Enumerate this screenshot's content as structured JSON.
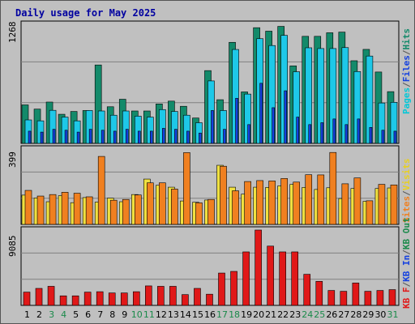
{
  "title": "Daily usage for May 2025",
  "colors": {
    "hits": "#138a6a",
    "files": "#1ec8e8",
    "pages": "#1440e0",
    "visits": "#f0e040",
    "sites": "#f08020",
    "kb": "#e01818",
    "weekday_label": "#000000",
    "weekend_label": "#1a8a4a"
  },
  "legend_top": [
    {
      "text": "Pages",
      "color": "#00c8d8"
    },
    {
      "text": "/",
      "color": "#555555"
    },
    {
      "text": "Files",
      "color": "#1440e0"
    },
    {
      "text": "/",
      "color": "#555555"
    },
    {
      "text": "Hits",
      "color": "#138a6a"
    }
  ],
  "legend_mid": [
    {
      "text": "Sites",
      "color": "#f08020"
    },
    {
      "text": "/",
      "color": "#555555"
    },
    {
      "text": "Visits",
      "color": "#e8d020"
    }
  ],
  "legend_bot": [
    {
      "text": "KB F",
      "color": "#e01818"
    },
    {
      "text": "/",
      "color": "#555555"
    },
    {
      "text": "KB In",
      "color": "#1440e0"
    },
    {
      "text": "/",
      "color": "#555555"
    },
    {
      "text": "KB Out",
      "color": "#1a8a4a"
    }
  ],
  "chart_data": [
    {
      "type": "bar",
      "panel": "hits-files-pages",
      "ymax_label": "1268",
      "ylim": [
        0,
        1268
      ],
      "categories": [
        "1",
        "2",
        "3",
        "4",
        "5",
        "6",
        "7",
        "8",
        "9",
        "10",
        "11",
        "12",
        "13",
        "14",
        "15",
        "16",
        "17",
        "18",
        "19",
        "20",
        "21",
        "22",
        "23",
        "24",
        "25",
        "26",
        "27",
        "28",
        "29",
        "30",
        "31"
      ],
      "series": [
        {
          "name": "Hits",
          "values": [
            410,
            365,
            440,
            310,
            340,
            350,
            835,
            390,
            470,
            345,
            345,
            420,
            450,
            395,
            270,
            775,
            465,
            1076,
            548,
            1232,
            1195,
            1246,
            825,
            1140,
            1140,
            1178,
            1185,
            880,
            1001,
            760,
            551
          ]
        },
        {
          "name": "Files",
          "values": [
            250,
            240,
            352,
            280,
            240,
            350,
            345,
            300,
            345,
            290,
            280,
            360,
            340,
            300,
            220,
            665,
            350,
            1000,
            525,
            1115,
            1042,
            1150,
            763,
            1018,
            1010,
            1010,
            1020,
            765,
            930,
            430,
            437
          ]
        },
        {
          "name": "Pages",
          "values": [
            130,
            120,
            150,
            140,
            120,
            150,
            140,
            130,
            150,
            130,
            130,
            160,
            150,
            130,
            110,
            350,
            150,
            480,
            200,
            640,
            380,
            560,
            280,
            200,
            220,
            260,
            200,
            260,
            170,
            140,
            130
          ]
        }
      ]
    },
    {
      "type": "bar",
      "panel": "visits-sites",
      "ymax_label": "399",
      "ylim": [
        0,
        399
      ],
      "categories": [
        "1",
        "2",
        "3",
        "4",
        "5",
        "6",
        "7",
        "8",
        "9",
        "10",
        "11",
        "12",
        "13",
        "14",
        "15",
        "16",
        "17",
        "18",
        "19",
        "20",
        "21",
        "22",
        "23",
        "24",
        "25",
        "26",
        "27",
        "28",
        "29",
        "30",
        "31"
      ],
      "series": [
        {
          "name": "Visits",
          "values": [
            155,
            140,
            120,
            152,
            115,
            142,
            118,
            139,
            120,
            158,
            240,
            207,
            197,
            124,
            117,
            129,
            313,
            197,
            160,
            197,
            196,
            204,
            212,
            196,
            185,
            194,
            137,
            190,
            122,
            190,
            193
          ]
        },
        {
          "name": "Sites",
          "values": [
            180,
            150,
            158,
            170,
            165,
            146,
            360,
            128,
            132,
            156,
            220,
            220,
            187,
            380,
            114,
            132,
            308,
            178,
            227,
            232,
            230,
            243,
            224,
            263,
            262,
            381,
            215,
            246,
            125,
            212,
            209
          ]
        }
      ]
    },
    {
      "type": "bar",
      "panel": "kbytes",
      "ymax_label": "9085",
      "ylim": [
        0,
        9085
      ],
      "categories": [
        "1",
        "2",
        "3",
        "4",
        "5",
        "6",
        "7",
        "8",
        "9",
        "10",
        "11",
        "12",
        "13",
        "14",
        "15",
        "16",
        "17",
        "18",
        "19",
        "20",
        "21",
        "22",
        "23",
        "24",
        "25",
        "26",
        "27",
        "28",
        "29",
        "30",
        "31"
      ],
      "series": [
        {
          "name": "KB F",
          "values": [
            1600,
            2050,
            2300,
            1150,
            1150,
            1600,
            1650,
            1500,
            1500,
            1650,
            2350,
            2300,
            2300,
            1300,
            2050,
            1350,
            3900,
            4100,
            6450,
            9085,
            7150,
            6450,
            6450,
            3750,
            2900,
            1800,
            1700,
            2700,
            1700,
            1800,
            1900
          ]
        }
      ]
    }
  ],
  "days": [
    {
      "label": "1",
      "weekend": false
    },
    {
      "label": "2",
      "weekend": false
    },
    {
      "label": "3",
      "weekend": true
    },
    {
      "label": "4",
      "weekend": true
    },
    {
      "label": "5",
      "weekend": false
    },
    {
      "label": "6",
      "weekend": false
    },
    {
      "label": "7",
      "weekend": false
    },
    {
      "label": "8",
      "weekend": false
    },
    {
      "label": "9",
      "weekend": false
    },
    {
      "label": "10",
      "weekend": true
    },
    {
      "label": "11",
      "weekend": true
    },
    {
      "label": "12",
      "weekend": false
    },
    {
      "label": "13",
      "weekend": false
    },
    {
      "label": "14",
      "weekend": false
    },
    {
      "label": "15",
      "weekend": false
    },
    {
      "label": "16",
      "weekend": false
    },
    {
      "label": "17",
      "weekend": true
    },
    {
      "label": "18",
      "weekend": true
    },
    {
      "label": "19",
      "weekend": false
    },
    {
      "label": "20",
      "weekend": false
    },
    {
      "label": "21",
      "weekend": false
    },
    {
      "label": "22",
      "weekend": false
    },
    {
      "label": "23",
      "weekend": false
    },
    {
      "label": "24",
      "weekend": true
    },
    {
      "label": "25",
      "weekend": true
    },
    {
      "label": "26",
      "weekend": false
    },
    {
      "label": "27",
      "weekend": false
    },
    {
      "label": "28",
      "weekend": false
    },
    {
      "label": "29",
      "weekend": false
    },
    {
      "label": "30",
      "weekend": false
    },
    {
      "label": "31",
      "weekend": true
    }
  ]
}
